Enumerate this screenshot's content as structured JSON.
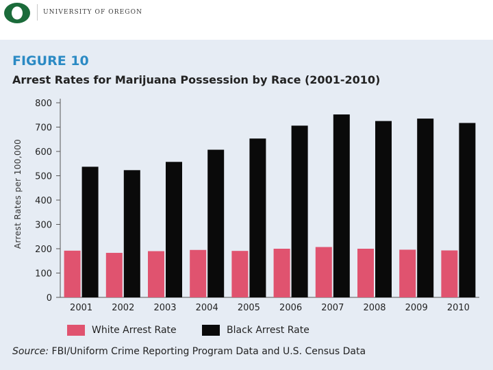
{
  "header": {
    "university": "UNIVERSITY OF OREGON",
    "logo_letter": "O"
  },
  "figure": {
    "label": "FIGURE 10",
    "title": "Arrest Rates for Marijuana Possession by Race (2001-2010)"
  },
  "colors": {
    "white_series": "#e0536f",
    "black_series": "#0a0a0a",
    "logo_green": "#1b6b3a"
  },
  "chart_data": {
    "type": "bar",
    "title": "Arrest Rates for Marijuana Possession by Race (2001-2010)",
    "xlabel": "",
    "ylabel": "Arrest Rates per 100,000",
    "ylim": [
      0,
      800
    ],
    "yticks": [
      "0",
      "100",
      "200",
      "300",
      "400",
      "500",
      "600",
      "700",
      "800"
    ],
    "ytick_values": [
      0,
      100,
      200,
      300,
      400,
      500,
      600,
      700,
      800
    ],
    "categories": [
      "2001",
      "2002",
      "2003",
      "2004",
      "2005",
      "2006",
      "2007",
      "2008",
      "2009",
      "2010"
    ],
    "series": [
      {
        "name": "White Arrest Rate",
        "values": [
          192,
          183,
          190,
          195,
          191,
          200,
          207,
          200,
          196,
          193
        ]
      },
      {
        "name": "Black Arrest Rate",
        "values": [
          537,
          523,
          557,
          607,
          653,
          706,
          752,
          725,
          735,
          717
        ]
      }
    ],
    "grid": false,
    "legend": "bottom"
  },
  "legend": {
    "white_label": "White Arrest Rate",
    "black_label": "Black Arrest Rate"
  },
  "source": {
    "prefix": "Source:",
    "text": " FBI/Uniform Crime Reporting Program Data and U.S. Census Data"
  }
}
